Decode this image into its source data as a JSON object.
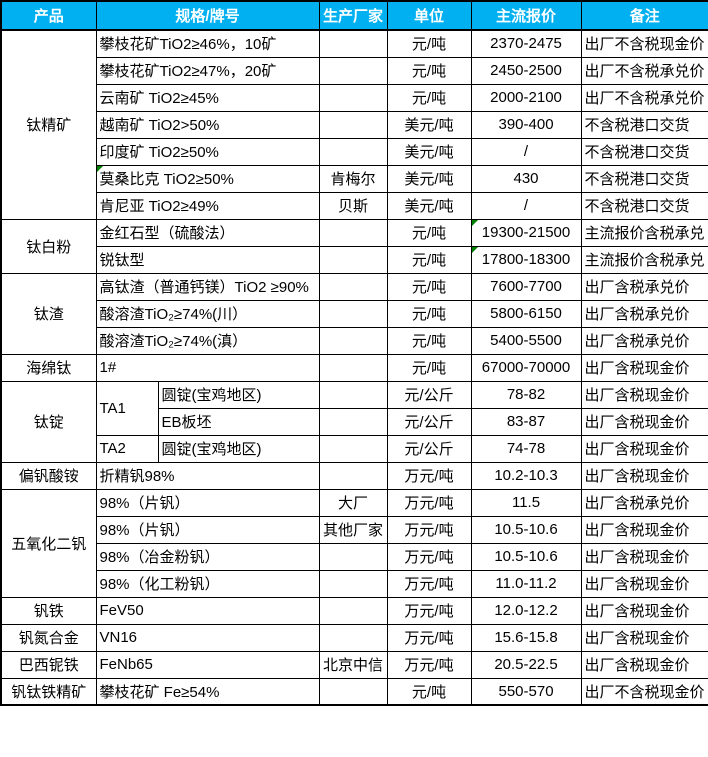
{
  "colors": {
    "header_bg": "#00B0F0",
    "header_text": "#FFFFFF",
    "border": "#000000",
    "flag_green": "#008000",
    "body_bg": "#FFFFFF"
  },
  "table": {
    "columns": [
      {
        "label": "产品"
      },
      {
        "label": "规格/牌号"
      },
      {
        "label": "生产厂家"
      },
      {
        "label": "单位"
      },
      {
        "label": "主流报价"
      },
      {
        "label": "备注"
      }
    ],
    "rows": [
      {
        "product": "钛精矿",
        "product_rowspan": 7,
        "spec": "攀枝花矿TiO2≥46%，10矿",
        "maker": "",
        "unit": "元/吨",
        "price": "2370-2475",
        "note": "出厂不含税现金价"
      },
      {
        "spec": "攀枝花矿TiO2≥47%，20矿",
        "maker": "",
        "unit": "元/吨",
        "price": "2450-2500",
        "note": "出厂不含税承兑价"
      },
      {
        "spec": "云南矿 TiO2≥45%",
        "maker": "",
        "unit": "元/吨",
        "price": "2000-2100",
        "note": "出厂不含税承兑价"
      },
      {
        "spec": "越南矿 TiO2>50%",
        "maker": "",
        "unit": "美元/吨",
        "price": "390-400",
        "note": "不含税港口交货"
      },
      {
        "spec": "印度矿 TiO2≥50%",
        "maker": "",
        "unit": "美元/吨",
        "price": "/",
        "note": "不含税港口交货"
      },
      {
        "spec": "莫桑比克 TiO2≥50%",
        "spec_flag": true,
        "maker": "肯梅尔",
        "unit": "美元/吨",
        "price": "430",
        "note": "不含税港口交货"
      },
      {
        "spec": "肯尼亚 TiO2≥49%",
        "maker": "贝斯",
        "unit": "美元/吨",
        "price": "/",
        "note": "不含税港口交货"
      },
      {
        "product": "钛白粉",
        "product_rowspan": 2,
        "spec": "金红石型（硫酸法）",
        "maker": "",
        "unit": "元/吨",
        "price": "19300-21500",
        "price_flag": true,
        "note": "主流报价含税承兑"
      },
      {
        "spec": "锐钛型",
        "maker": "",
        "unit": "元/吨",
        "price": "17800-18300",
        "price_flag": true,
        "note": "主流报价含税承兑"
      },
      {
        "product": "钛渣",
        "product_rowspan": 3,
        "spec": "高钛渣（普通钙镁）TiO2 ≥90%",
        "maker": "",
        "unit": "元/吨",
        "price": "7600-7700",
        "note": "出厂含税承兑价"
      },
      {
        "spec": "酸溶渣TiO₂≥74%(川）",
        "maker": "",
        "unit": "元/吨",
        "price": "5800-6150",
        "note": "出厂含税承兑价"
      },
      {
        "spec": "酸溶渣TiO₂≥74%(滇）",
        "maker": "",
        "unit": "元/吨",
        "price": "5400-5500",
        "note": "出厂含税承兑价"
      },
      {
        "product": "海绵钛",
        "product_rowspan": 1,
        "spec": "1#",
        "maker": "",
        "unit": "元/吨",
        "price": "67000-70000",
        "note": "出厂含税现金价"
      },
      {
        "product": "钛锭",
        "product_rowspan": 3,
        "grade": "TA1",
        "grade_rowspan": 2,
        "spec": "圆锭(宝鸡地区)",
        "maker": "",
        "unit": "元/公斤",
        "price": "78-82",
        "note": "出厂含税现金价"
      },
      {
        "in_grade_group": true,
        "spec": "EB板坯",
        "maker": "",
        "unit": "元/公斤",
        "price": "83-87",
        "note": "出厂含税现金价"
      },
      {
        "grade": "TA2",
        "grade_rowspan": 1,
        "spec": "圆锭(宝鸡地区)",
        "maker": "",
        "unit": "元/公斤",
        "price": "74-78",
        "note": "出厂含税现金价"
      },
      {
        "product": "偏钒酸铵",
        "product_rowspan": 1,
        "spec": "折精钒98%",
        "maker": "",
        "unit": "万元/吨",
        "price": "10.2-10.3",
        "note": "出厂含税现金价"
      },
      {
        "product": "五氧化二钒",
        "product_rowspan": 4,
        "spec": "98%（片钒）",
        "maker": "大厂",
        "unit": "万元/吨",
        "price": "11.5",
        "note": "出厂含税承兑价"
      },
      {
        "spec": "98%（片钒）",
        "maker": "其他厂家",
        "unit": "万元/吨",
        "price": "10.5-10.6",
        "note": "出厂含税现金价"
      },
      {
        "spec": "98%（冶金粉钒）",
        "maker": "",
        "unit": "万元/吨",
        "price": "10.5-10.6",
        "note": "出厂含税现金价"
      },
      {
        "spec": "98%（化工粉钒）",
        "maker": "",
        "unit": "万元/吨",
        "price": "11.0-11.2",
        "note": "出厂含税现金价"
      },
      {
        "product": "钒铁",
        "product_rowspan": 1,
        "spec": "FeV50",
        "maker": "",
        "unit": "万元/吨",
        "price": "12.0-12.2",
        "note": "出厂含税现金价"
      },
      {
        "product": "钒氮合金",
        "product_rowspan": 1,
        "spec": "VN16",
        "maker": "",
        "unit": "万元/吨",
        "price": "15.6-15.8",
        "note": "出厂含税现金价"
      },
      {
        "product": "巴西铌铁",
        "product_rowspan": 1,
        "spec": "FeNb65",
        "maker": "北京中信",
        "unit": "万元/吨",
        "price": "20.5-22.5",
        "note": "出厂含税现金价"
      },
      {
        "product": "钒钛铁精矿",
        "product_rowspan": 1,
        "spec": "攀枝花矿 Fe≥54%",
        "maker": "",
        "unit": "元/吨",
        "price": "550-570",
        "note": "出厂不含税现金价"
      }
    ]
  }
}
